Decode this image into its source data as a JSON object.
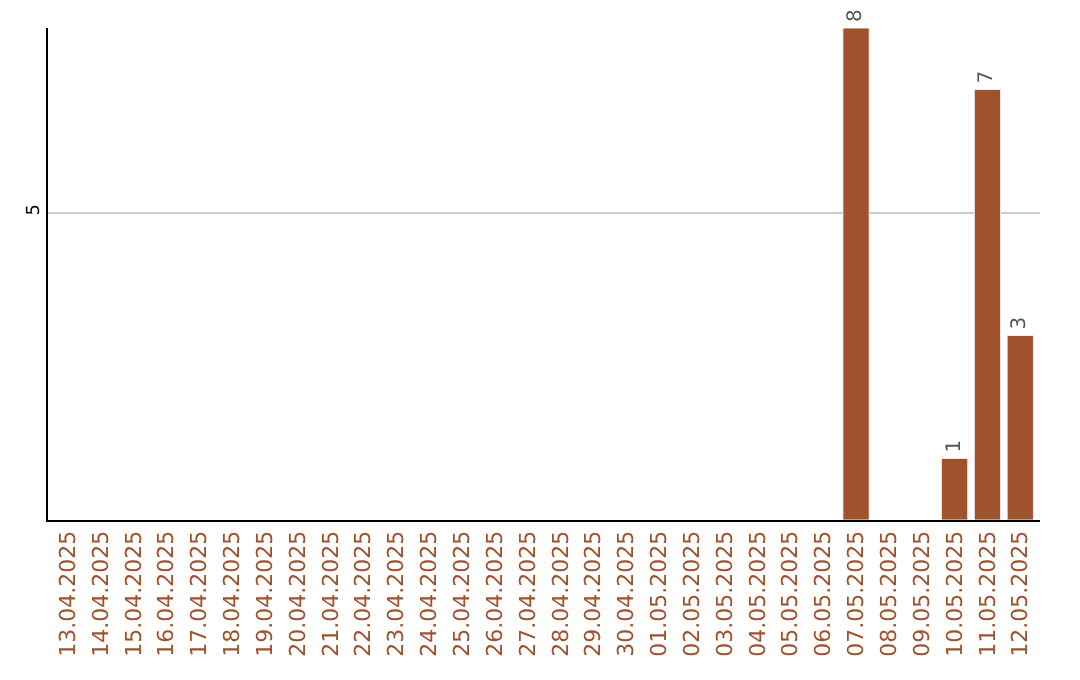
{
  "chart_data": {
    "type": "bar",
    "categories": [
      "13.04.2025",
      "14.04.2025",
      "15.04.2025",
      "16.04.2025",
      "17.04.2025",
      "18.04.2025",
      "19.04.2025",
      "20.04.2025",
      "21.04.2025",
      "22.04.2025",
      "23.04.2025",
      "24.04.2025",
      "25.04.2025",
      "26.04.2025",
      "27.04.2025",
      "28.04.2025",
      "29.04.2025",
      "30.04.2025",
      "01.05.2025",
      "02.05.2025",
      "03.05.2025",
      "04.05.2025",
      "05.05.2025",
      "06.05.2025",
      "07.05.2025",
      "08.05.2025",
      "09.05.2025",
      "10.05.2025",
      "11.05.2025",
      "12.05.2025"
    ],
    "values": [
      null,
      null,
      null,
      null,
      null,
      null,
      null,
      null,
      null,
      null,
      null,
      null,
      null,
      null,
      null,
      null,
      null,
      null,
      null,
      null,
      null,
      null,
      null,
      null,
      8,
      null,
      null,
      1,
      7,
      3
    ],
    "color": "#a0522d",
    "ylim": [
      0,
      8
    ],
    "yticks": [
      5
    ],
    "grid": "y",
    "data_labels": true,
    "legend": false
  }
}
